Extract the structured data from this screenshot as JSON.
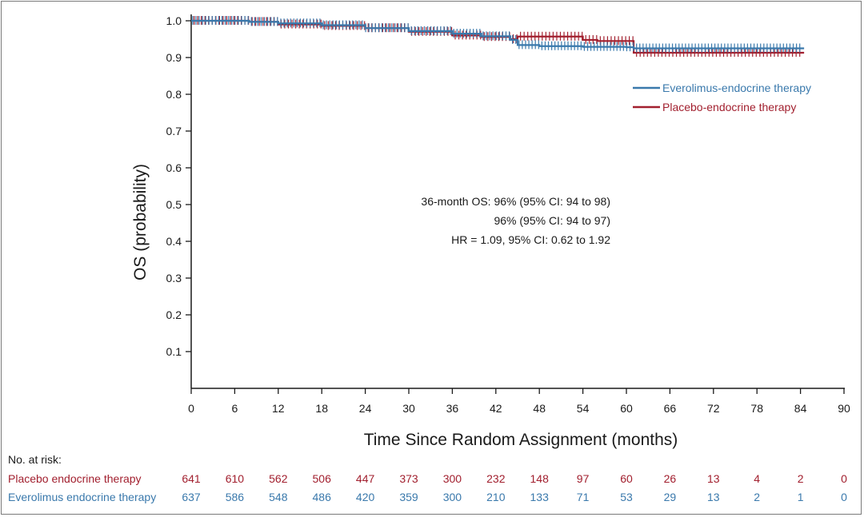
{
  "colors": {
    "everolimus": "#3a79ac",
    "placebo": "#a2202f",
    "axis": "#1a1a1a"
  },
  "chart_data": {
    "type": "line",
    "title": "",
    "xlabel": "Time Since Random Assignment (months)",
    "ylabel": "OS (probability)",
    "xlim": [
      0,
      90
    ],
    "ylim": [
      0,
      1.0
    ],
    "xticks": [
      0,
      6,
      12,
      18,
      24,
      30,
      36,
      42,
      48,
      54,
      60,
      66,
      72,
      78,
      84,
      90
    ],
    "yticks": [
      "0.1",
      "0.2",
      "0.3",
      "0.4",
      "0.5",
      "0.6",
      "0.7",
      "0.8",
      "0.9",
      "1.0"
    ],
    "legend": [
      "Everolimus-endocrine therapy",
      "Placebo-endocrine therapy"
    ],
    "annotations": [
      "36-month OS: 96% (95% CI: 94 to 98)",
      "96% (95% CI: 94 to 97)",
      "HR = 1.09, 95% CI: 0.62 to 1.92"
    ],
    "series": [
      {
        "name": "Everolimus-endocrine therapy",
        "x": [
          0,
          6,
          8,
          12,
          18,
          24,
          30,
          36,
          40,
          44,
          45,
          48,
          54,
          60,
          61,
          66,
          72,
          84.5
        ],
        "y": [
          1.0,
          1.0,
          0.997,
          0.993,
          0.988,
          0.98,
          0.972,
          0.965,
          0.958,
          0.948,
          0.934,
          0.931,
          0.929,
          0.928,
          0.925,
          0.925,
          0.925,
          0.925
        ]
      },
      {
        "name": "Placebo-endocrine therapy",
        "x": [
          0,
          6,
          8,
          12,
          18,
          24,
          30,
          36,
          40,
          44,
          45,
          48,
          54,
          56,
          60,
          61,
          66,
          72,
          84.5
        ],
        "y": [
          1.0,
          1.0,
          0.997,
          0.99,
          0.986,
          0.98,
          0.97,
          0.96,
          0.956,
          0.95,
          0.957,
          0.957,
          0.948,
          0.945,
          0.945,
          0.913,
          0.913,
          0.913,
          0.913
        ]
      }
    ]
  },
  "risk_table": {
    "title": "No. at risk:",
    "rows": [
      {
        "label": "Placebo endocrine therapy",
        "values": [
          "641",
          "610",
          "562",
          "506",
          "447",
          "373",
          "300",
          "232",
          "148",
          "97",
          "60",
          "26",
          "13",
          "4",
          "2",
          "0"
        ]
      },
      {
        "label": "Everolimus endocrine therapy",
        "values": [
          "637",
          "586",
          "548",
          "486",
          "420",
          "359",
          "300",
          "210",
          "133",
          "71",
          "53",
          "29",
          "13",
          "2",
          "1",
          "0"
        ]
      }
    ]
  }
}
